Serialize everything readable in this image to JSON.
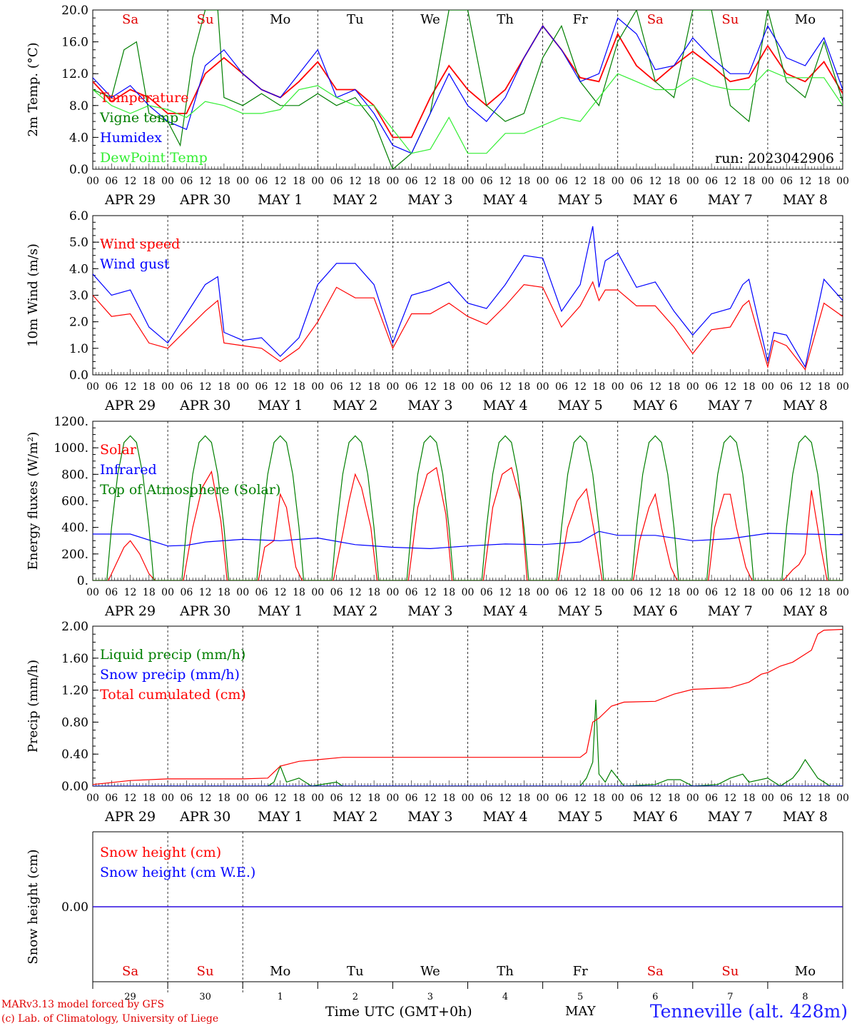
{
  "run_label": "run: 2023042906",
  "footer": {
    "credit_line1": "MARv3.13 model forced by GFS",
    "credit_line2": "(c) Lab. of Climatology, University of Liege",
    "time_axis_label": "Time UTC (GMT+0h)",
    "month_label": "MAY",
    "station": "Tenneville (alt. 428m)"
  },
  "day_abbrev": [
    "Sa",
    "Su",
    "Mo",
    "Tu",
    "We",
    "Th",
    "Fr",
    "Sa",
    "Su",
    "Mo"
  ],
  "day_colors": [
    "#e00000",
    "#e00000",
    "#000000",
    "#000000",
    "#000000",
    "#000000",
    "#000000",
    "#e00000",
    "#e00000",
    "#000000"
  ],
  "day_numbers": [
    "29",
    "30",
    "1",
    "2",
    "3",
    "4",
    "5",
    "6",
    "7",
    "8"
  ],
  "date_labels": [
    "APR 29",
    "APR 30",
    "MAY  1",
    "MAY  2",
    "MAY  3",
    "MAY  4",
    "MAY  5",
    "MAY  6",
    "MAY  7",
    "MAY  8"
  ],
  "hour_labels": [
    "00",
    "06",
    "12",
    "18"
  ],
  "chart_data": [
    {
      "type": "line",
      "ylabel": "2m Temp. (°C)",
      "ylim": [
        0,
        20
      ],
      "ytick_labels": [
        "0.0",
        "4.0",
        "8.0",
        "12.0",
        "16.0",
        "20.0"
      ],
      "x_unit": "hours since APR 29 00 UTC",
      "xlim": [
        0,
        240
      ],
      "series": [
        {
          "name": "Temperature",
          "color": "#ff0000",
          "x": [
            0,
            6,
            12,
            18,
            24,
            30,
            36,
            42,
            48,
            54,
            60,
            66,
            72,
            78,
            84,
            90,
            96,
            102,
            108,
            114,
            120,
            126,
            132,
            138,
            144,
            150,
            156,
            162,
            168,
            174,
            180,
            186,
            192,
            198,
            204,
            210,
            216,
            222,
            228,
            234,
            240
          ],
          "y": [
            11,
            8.5,
            10,
            9,
            7,
            7,
            12,
            14,
            12,
            10,
            9,
            11,
            13.5,
            10,
            10,
            8,
            4,
            4,
            9,
            13,
            10,
            8,
            10,
            14,
            18,
            15,
            11.5,
            11,
            17,
            13,
            11,
            13,
            14.8,
            13,
            11,
            11.5,
            15.5,
            12,
            11,
            13.5,
            9.5
          ]
        },
        {
          "name": "Vigne temp",
          "color": "#007f00",
          "x": [
            0,
            6,
            10,
            14,
            18,
            24,
            28,
            32,
            36,
            40,
            42,
            48,
            54,
            60,
            66,
            72,
            78,
            84,
            90,
            96,
            102,
            108,
            114,
            120,
            126,
            132,
            138,
            144,
            150,
            156,
            162,
            168,
            174,
            180,
            186,
            192,
            198,
            204,
            210,
            216,
            222,
            228,
            234,
            240
          ],
          "y": [
            10,
            9,
            15,
            16,
            7,
            6,
            3,
            14,
            20,
            20,
            9,
            8,
            9.5,
            8,
            8,
            9.5,
            8,
            9,
            6,
            0,
            2,
            7,
            20,
            20,
            8,
            6,
            7,
            14,
            18,
            11,
            8,
            16,
            20,
            11,
            9,
            20,
            20,
            8,
            6,
            20,
            11,
            9,
            16,
            8.5
          ]
        },
        {
          "name": "Humidex",
          "color": "#0000ff",
          "x": [
            0,
            6,
            12,
            18,
            24,
            30,
            36,
            42,
            48,
            54,
            60,
            66,
            72,
            78,
            84,
            90,
            96,
            102,
            108,
            114,
            120,
            126,
            132,
            138,
            144,
            150,
            156,
            162,
            168,
            174,
            180,
            186,
            192,
            198,
            204,
            210,
            216,
            222,
            228,
            234,
            240
          ],
          "y": [
            11.5,
            9,
            10.5,
            8,
            6,
            5,
            13,
            15,
            12,
            10,
            9,
            12,
            15,
            9,
            10,
            7,
            3,
            2,
            7,
            12,
            8,
            6,
            9,
            14,
            18,
            15,
            11,
            12,
            19,
            17,
            12.5,
            13,
            16.5,
            14,
            12,
            12,
            18,
            14,
            13,
            16.5,
            10
          ]
        },
        {
          "name": "DewPoint Temp",
          "color": "#33ee33",
          "x": [
            0,
            6,
            12,
            18,
            24,
            30,
            36,
            42,
            48,
            54,
            60,
            66,
            72,
            78,
            84,
            90,
            96,
            102,
            108,
            114,
            120,
            126,
            132,
            138,
            144,
            150,
            156,
            162,
            168,
            174,
            180,
            186,
            192,
            198,
            204,
            210,
            216,
            222,
            228,
            234,
            240
          ],
          "y": [
            10,
            8,
            7,
            8,
            7.5,
            6.5,
            8.5,
            8,
            7,
            7,
            7.5,
            10,
            10.5,
            9,
            8,
            8,
            5,
            2,
            2.5,
            6.5,
            2,
            2,
            4.5,
            4.5,
            5.5,
            6.5,
            6,
            9,
            12,
            11,
            10,
            10,
            11.5,
            10.5,
            10,
            10,
            12.5,
            11.5,
            11.5,
            11.5,
            8
          ]
        }
      ]
    },
    {
      "type": "line",
      "ylabel": "10m Wind (m/s)",
      "ylim": [
        0,
        6
      ],
      "ytick_labels": [
        "0.0",
        "1.0",
        "2.0",
        "3.0",
        "4.0",
        "5.0",
        "6.0"
      ],
      "x_unit": "hours since APR 29 00 UTC",
      "xlim": [
        0,
        240
      ],
      "series": [
        {
          "name": "Wind speed",
          "color": "#ff0000",
          "x": [
            0,
            6,
            12,
            18,
            24,
            30,
            36,
            40,
            42,
            48,
            54,
            60,
            66,
            72,
            78,
            84,
            90,
            96,
            102,
            108,
            114,
            120,
            126,
            132,
            138,
            144,
            150,
            156,
            160,
            162,
            164,
            168,
            174,
            180,
            186,
            192,
            198,
            204,
            208,
            210,
            216,
            218,
            222,
            228,
            234,
            240
          ],
          "y": [
            3,
            2.2,
            2.3,
            1.2,
            1.0,
            1.7,
            2.4,
            2.8,
            1.2,
            1.1,
            1.0,
            0.5,
            1.0,
            2.0,
            3.3,
            2.9,
            2.9,
            1.0,
            2.3,
            2.3,
            2.7,
            2.2,
            1.9,
            2.6,
            3.4,
            3.3,
            1.8,
            2.6,
            3.5,
            2.8,
            3.2,
            3.2,
            2.6,
            2.6,
            1.8,
            0.8,
            1.7,
            1.8,
            2.6,
            2.8,
            0.3,
            1.3,
            1.1,
            0.2,
            2.7,
            2.2
          ]
        },
        {
          "name": "Wind gust",
          "color": "#0000ff",
          "x": [
            0,
            6,
            12,
            18,
            24,
            30,
            36,
            40,
            42,
            48,
            54,
            60,
            66,
            72,
            78,
            84,
            90,
            96,
            102,
            108,
            114,
            120,
            126,
            132,
            138,
            144,
            150,
            156,
            160,
            162,
            164,
            168,
            174,
            180,
            186,
            192,
            198,
            204,
            208,
            210,
            216,
            218,
            222,
            228,
            234,
            240
          ],
          "y": [
            3.8,
            3.0,
            3.2,
            1.8,
            1.2,
            2.3,
            3.4,
            3.7,
            1.6,
            1.3,
            1.4,
            0.7,
            1.4,
            3.4,
            4.2,
            4.2,
            3.4,
            1.2,
            3.0,
            3.2,
            3.5,
            2.7,
            2.5,
            3.4,
            4.5,
            4.4,
            2.4,
            3.4,
            5.6,
            3.3,
            4.3,
            4.6,
            3.3,
            3.5,
            2.4,
            1.5,
            2.3,
            2.5,
            3.4,
            3.6,
            0.5,
            1.6,
            1.5,
            0.3,
            3.6,
            2.8
          ]
        }
      ]
    },
    {
      "type": "line",
      "ylabel": "Energy fluxes (W/m²)",
      "ylim": [
        0,
        1200
      ],
      "ytick_labels": [
        "0.",
        "200.",
        "400.",
        "600.",
        "800.",
        "1000.",
        "1200."
      ],
      "x_unit": "hours since APR 29 00 UTC",
      "xlim": [
        0,
        240
      ],
      "series": [
        {
          "name": "Solar",
          "color": "#ff0000",
          "x": [
            0,
            5,
            8,
            10,
            12,
            15,
            18,
            20,
            24,
            29,
            32,
            35,
            38,
            41,
            43,
            48,
            53,
            55,
            58,
            60,
            62,
            65,
            67,
            72,
            77,
            80,
            82,
            84,
            86,
            89,
            91,
            96,
            101,
            104,
            107,
            110,
            113,
            115,
            120,
            125,
            128,
            131,
            134,
            137,
            139,
            144,
            149,
            152,
            155,
            158,
            161,
            163,
            168,
            173,
            175,
            178,
            180,
            182,
            185,
            187,
            192,
            197,
            199,
            202,
            204,
            206,
            209,
            211,
            216,
            221,
            224,
            226,
            228,
            230,
            233,
            235,
            240
          ],
          "y": [
            0,
            0,
            150,
            250,
            300,
            200,
            50,
            0,
            0,
            0,
            400,
            700,
            820,
            450,
            0,
            0,
            0,
            250,
            300,
            650,
            550,
            100,
            0,
            0,
            0,
            350,
            600,
            800,
            700,
            400,
            0,
            0,
            0,
            550,
            800,
            850,
            500,
            0,
            0,
            0,
            550,
            800,
            850,
            600,
            0,
            0,
            0,
            400,
            600,
            690,
            300,
            0,
            0,
            0,
            300,
            550,
            650,
            400,
            100,
            0,
            0,
            0,
            400,
            650,
            650,
            400,
            100,
            0,
            0,
            0,
            80,
            120,
            200,
            680,
            250,
            0,
            0
          ]
        },
        {
          "name": "Infrared",
          "color": "#0000ff",
          "x": [
            0,
            12,
            24,
            30,
            36,
            48,
            60,
            72,
            84,
            96,
            108,
            120,
            132,
            144,
            156,
            162,
            168,
            180,
            192,
            204,
            216,
            228,
            240
          ],
          "y": [
            350,
            350,
            260,
            265,
            290,
            310,
            300,
            320,
            270,
            250,
            240,
            260,
            275,
            270,
            290,
            370,
            340,
            340,
            300,
            315,
            355,
            350,
            345
          ]
        },
        {
          "name": "Top of Atmosphere (Solar)",
          "color": "#007f00",
          "x": [
            0,
            4.5,
            6,
            8,
            10,
            12,
            14,
            16,
            18,
            19.5,
            24
          ],
          "y": [
            0,
            0,
            400,
            800,
            1040,
            1090,
            1040,
            800,
            400,
            0,
            0
          ],
          "note_periodic": "repeats daily"
        }
      ]
    },
    {
      "type": "line",
      "ylabel": "Precip (mm/h)",
      "ylim": [
        0,
        2
      ],
      "ytick_labels": [
        "0.00",
        "0.40",
        "0.80",
        "1.20",
        "1.60",
        "2.00"
      ],
      "x_unit": "hours since APR 29 00 UTC",
      "xlim": [
        0,
        240
      ],
      "series": [
        {
          "name": "Liquid precip (mm/h)",
          "color": "#007f00",
          "x": [
            0,
            56,
            58,
            60,
            62,
            66,
            68,
            70,
            78,
            80,
            82,
            156,
            158,
            160,
            161,
            162,
            164,
            166,
            170,
            180,
            184,
            188,
            192,
            200,
            204,
            208,
            210,
            216,
            220,
            224,
            226,
            228,
            232,
            236,
            240
          ],
          "y": [
            0,
            0,
            0.05,
            0.25,
            0.05,
            0.1,
            0.05,
            0,
            0.05,
            0,
            0,
            0,
            0.1,
            0.3,
            1.08,
            0.15,
            0.05,
            0.2,
            0,
            0.02,
            0.08,
            0.08,
            0,
            0.02,
            0.1,
            0.15,
            0.05,
            0.1,
            0,
            0.1,
            0.2,
            0.33,
            0.1,
            0,
            0
          ]
        },
        {
          "name": "Snow precip (mm/h)",
          "color": "#0000ff",
          "x": [
            0,
            240
          ],
          "y": [
            0,
            0
          ]
        },
        {
          "name": "Total cumulated (cm)",
          "color": "#ff0000",
          "x": [
            0,
            12,
            24,
            48,
            56,
            60,
            66,
            72,
            80,
            96,
            120,
            144,
            156,
            158,
            160,
            162,
            166,
            170,
            180,
            186,
            192,
            204,
            210,
            214,
            216,
            220,
            224,
            230,
            232,
            234,
            240
          ],
          "y": [
            0.02,
            0.07,
            0.09,
            0.09,
            0.1,
            0.25,
            0.31,
            0.33,
            0.36,
            0.36,
            0.36,
            0.36,
            0.36,
            0.42,
            0.8,
            0.85,
            1.0,
            1.05,
            1.06,
            1.15,
            1.21,
            1.23,
            1.3,
            1.4,
            1.42,
            1.5,
            1.55,
            1.7,
            1.9,
            1.95,
            1.96
          ]
        }
      ]
    },
    {
      "type": "line",
      "ylabel": "Snow height (cm)",
      "ylim": [
        -1,
        1
      ],
      "ytick_labels": [
        "0.00"
      ],
      "x_unit": "hours since APR 29 00 UTC",
      "xlim": [
        0,
        240
      ],
      "series": [
        {
          "name": "Snow height (cm)",
          "color": "#ff0000",
          "x": [
            0,
            240
          ],
          "y": [
            0,
            0
          ]
        },
        {
          "name": "Snow height (cm W.E.)",
          "color": "#0000ff",
          "x": [
            0,
            240
          ],
          "y": [
            0,
            0
          ]
        }
      ]
    }
  ]
}
